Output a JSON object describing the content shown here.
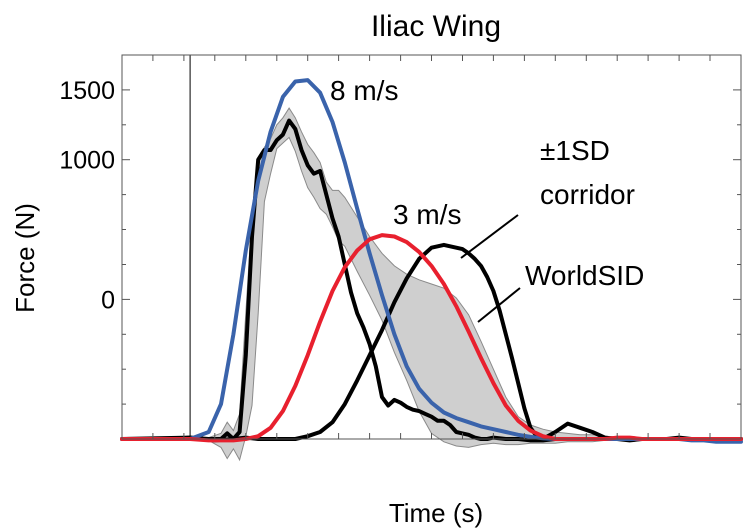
{
  "chart_data": {
    "type": "line",
    "title": "Iliac Wing",
    "xlabel": "Time (s)",
    "ylabel": "Force (N)",
    "x_tick_labels_shown": false,
    "xlim": [
      0,
      100
    ],
    "ylim": [
      -1000,
      1750
    ],
    "y_ticks": [
      {
        "value": 0,
        "label": "0"
      },
      {
        "value": 1000,
        "label": "1000"
      },
      {
        "value": 1500,
        "label": "1500"
      }
    ],
    "grid": false,
    "zero_time_marker": 11,
    "corridor": {
      "x": [
        0,
        8,
        11,
        14,
        16,
        17,
        18,
        19,
        20,
        21,
        22,
        23,
        24,
        25,
        26,
        27,
        28,
        29,
        30,
        31,
        32,
        33,
        34,
        35,
        36,
        38,
        40,
        42,
        44,
        46,
        48,
        50,
        52,
        54,
        56,
        58,
        60,
        62,
        64,
        66,
        68,
        70,
        72,
        74,
        76,
        78,
        80,
        82,
        84,
        86,
        88,
        90,
        92,
        94,
        96
      ],
      "upper": [
        -990,
        -990,
        -985,
        -990,
        -960,
        -880,
        -940,
        -820,
        -100,
        600,
        1000,
        1090,
        1150,
        1250,
        1300,
        1370,
        1300,
        1200,
        1110,
        1050,
        980,
        840,
        780,
        780,
        730,
        590,
        450,
        330,
        240,
        180,
        140,
        110,
        80,
        10,
        -110,
        -300,
        -500,
        -700,
        -840,
        -900,
        -930,
        -950,
        -960,
        -970,
        -970,
        -980,
        -985,
        -990,
        -990,
        -990,
        -990,
        -990,
        -990,
        -990,
        -990
      ],
      "lower": [
        -1010,
        -1010,
        -1010,
        -1010,
        -1060,
        -1140,
        -1070,
        -1150,
        -980,
        -760,
        -100,
        700,
        900,
        1080,
        1120,
        1160,
        1060,
        920,
        800,
        730,
        650,
        610,
        520,
        420,
        380,
        200,
        30,
        -150,
        -380,
        -580,
        -800,
        -960,
        -1020,
        -1050,
        -1060,
        -1040,
        -1030,
        -1040,
        -1040,
        -1030,
        -1030,
        -1030,
        -1020,
        -1020,
        -1020,
        -1010,
        -1010,
        -1010,
        -1010,
        -1010,
        -1010,
        -1010,
        -1010,
        -1010,
        -1010
      ]
    },
    "series": [
      {
        "color": "#000000",
        "x": [
          0,
          8,
          11,
          14,
          16,
          17,
          18,
          19,
          20,
          21,
          22,
          23,
          24,
          25,
          26,
          27,
          28,
          29,
          30,
          31,
          32,
          33,
          34,
          35,
          36,
          37,
          38,
          39,
          40,
          41,
          42,
          43,
          44,
          45,
          46,
          47,
          48,
          49,
          50,
          51,
          52,
          53,
          54,
          55,
          56,
          57,
          58,
          59,
          60,
          62,
          64,
          66,
          68,
          70,
          72,
          74,
          76,
          78,
          80,
          82,
          84,
          86,
          88,
          90,
          92,
          94,
          96,
          98,
          100
        ],
        "y": [
          -1000,
          -1000,
          -990,
          -1000,
          -1000,
          -960,
          -1000,
          -950,
          -400,
          450,
          1000,
          1070,
          1070,
          1140,
          1180,
          1280,
          1220,
          1070,
          960,
          900,
          920,
          750,
          580,
          450,
          250,
          50,
          -100,
          -200,
          -320,
          -480,
          -700,
          -760,
          -720,
          -740,
          -770,
          -790,
          -800,
          -820,
          -840,
          -870,
          -870,
          -900,
          -950,
          -960,
          -970,
          -990,
          -1000,
          -1000,
          -990,
          -1000,
          -1000,
          -1010,
          -1010,
          -1000,
          -1000,
          -1000,
          -1000,
          -1000,
          -1000,
          -1000,
          -1000,
          -1000,
          -1000,
          -1000,
          -1000,
          -1000,
          -1000,
          -1000,
          -1000
        ]
      },
      {
        "color": "#000000",
        "x": [
          0,
          11,
          15,
          18,
          20,
          22,
          24,
          26,
          28,
          30,
          32,
          34,
          36,
          38,
          40,
          42,
          44,
          46,
          48,
          50,
          52,
          53,
          54,
          55,
          56,
          57,
          58,
          59,
          60,
          61,
          62,
          63,
          64,
          65,
          66,
          67,
          68,
          70,
          72,
          74,
          76,
          78,
          80,
          82,
          84,
          86,
          88,
          90,
          92,
          94,
          96,
          98,
          100
        ],
        "y": [
          -1000,
          -990,
          -1010,
          -1000,
          -990,
          -1000,
          -1000,
          -1000,
          -1000,
          -980,
          -950,
          -880,
          -750,
          -580,
          -400,
          -220,
          -20,
          150,
          290,
          370,
          390,
          380,
          370,
          360,
          330,
          290,
          240,
          160,
          60,
          -80,
          -250,
          -420,
          -600,
          -780,
          -920,
          -980,
          -1000,
          -950,
          -890,
          -920,
          -950,
          -990,
          -1000,
          -1010,
          -1000,
          -1000,
          -1000,
          -990,
          -1000,
          -1000,
          -1000,
          -1000,
          -1000
        ]
      },
      {
        "name": "8 m/s",
        "color": "#3a63ab",
        "x": [
          0,
          11,
          14,
          16,
          18,
          20,
          22,
          24,
          26,
          28,
          30,
          32,
          34,
          36,
          38,
          40,
          42,
          44,
          46,
          48,
          50,
          52,
          54,
          56,
          58,
          60,
          62,
          64,
          66,
          68,
          70,
          72,
          74,
          76,
          78,
          80,
          82,
          84,
          86,
          88,
          90,
          92,
          94,
          96,
          98,
          100
        ],
        "y": [
          -1000,
          -1000,
          -950,
          -750,
          -250,
          350,
          850,
          1200,
          1450,
          1560,
          1570,
          1480,
          1270,
          980,
          650,
          330,
          30,
          -250,
          -480,
          -640,
          -740,
          -810,
          -850,
          -880,
          -910,
          -930,
          -950,
          -970,
          -985,
          -995,
          -1000,
          -1000,
          -1000,
          -1000,
          -1000,
          -1000,
          -1000,
          -1000,
          -1000,
          -1000,
          -1000,
          -1010,
          -1010,
          -1020,
          -1020,
          -1020
        ]
      },
      {
        "name": "WorldSID",
        "color": "#e8202e",
        "x": [
          0,
          11,
          14,
          16,
          18,
          20,
          22,
          24,
          26,
          28,
          30,
          32,
          34,
          36,
          38,
          40,
          42,
          44,
          46,
          48,
          50,
          52,
          54,
          56,
          58,
          60,
          62,
          64,
          66,
          68,
          70,
          72,
          74,
          76,
          78,
          80,
          82,
          84,
          86,
          88,
          90,
          92,
          94,
          96,
          98,
          100
        ],
        "y": [
          -1000,
          -1000,
          -1010,
          -1010,
          -1010,
          -1000,
          -980,
          -920,
          -800,
          -620,
          -400,
          -160,
          60,
          230,
          350,
          430,
          460,
          450,
          410,
          340,
          240,
          110,
          -50,
          -230,
          -420,
          -600,
          -760,
          -870,
          -940,
          -980,
          -1000,
          -1000,
          -1000,
          -1000,
          -1000,
          -990,
          -990,
          -1000,
          -1000,
          -1000,
          -1000,
          -1000,
          -1000,
          -1000,
          -1000,
          -1000
        ]
      }
    ],
    "annotations": {
      "speed_8": "8 m/s",
      "speed_3": "3 m/s",
      "corridor_line1": "±1SD",
      "corridor_line2": "corridor",
      "worldsid": "WorldSID"
    }
  }
}
